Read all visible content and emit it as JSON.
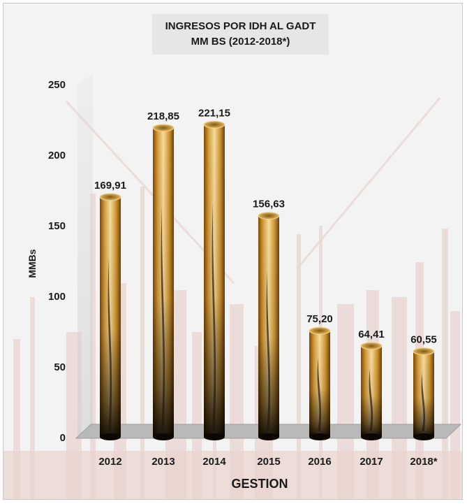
{
  "chart_data": {
    "type": "bar",
    "title": "INGRESOS POR IDH AL GADT",
    "subtitle": "MM BS (2012-2018*)",
    "ylabel": "MMBs",
    "xlabel": "GESTION",
    "categories": [
      "2012",
      "2013",
      "2014",
      "2015",
      "2016",
      "2017",
      "2018*"
    ],
    "values": [
      169.91,
      218.85,
      221.15,
      156.63,
      75.2,
      64.41,
      60.55
    ],
    "value_labels": [
      "169,91",
      "218,85",
      "221,15",
      "156,63",
      "75,20",
      "64,41",
      "60,55"
    ],
    "yticks": [
      "0",
      "50",
      "100",
      "150",
      "200",
      "250"
    ],
    "ylim": [
      0,
      250
    ],
    "grid": false,
    "legend": "none",
    "colors": {
      "bar_light": "#f3d79a",
      "bar_mid": "#c98f2c",
      "bar_dark": "#6b3d08",
      "floor": "#b9b9b9"
    }
  }
}
